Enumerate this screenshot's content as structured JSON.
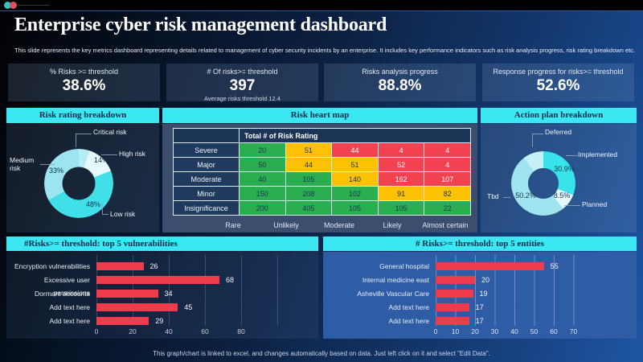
{
  "header": {
    "title": "Enterprise cyber risk management dashboard",
    "subtitle": "This slide represents the key metrics dashboard representing details related to management of cyber security incidents by an enterprise. It includes key performance indicators such as risk analysis progress, risk rating breakdown etc."
  },
  "kpis": [
    {
      "label": "% Risks >= threshold",
      "value": "38.6%",
      "sub": ""
    },
    {
      "label": "# Of risks>= threshold",
      "value": "397",
      "sub": "Average risks threshold 12.4"
    },
    {
      "label": "Risks analysis progress",
      "value": "88.8%",
      "sub": ""
    },
    {
      "label": "Response progress for risks>= threshold",
      "value": "52.6%",
      "sub": ""
    }
  ],
  "sections": {
    "risk_rating_title": "Risk rating breakdown",
    "heat_map_title": "Risk heart map",
    "action_plan_title": "Action plan breakdown",
    "vulnerabilities_title": "#Risks>= threshold: top 5 vulnerabilities",
    "entities_title": "# Risks>= threshold: top 5 entities"
  },
  "footer": {
    "note": "This graph/chart is linked to excel, and changes automatically based on data. Just left click on it and select \"Edit Data\"."
  },
  "colors": {
    "accent_cyan": "#3be7f0",
    "bar_red": "#ee3c4c",
    "heat_green": "#2bae50",
    "heat_yellow": "#fcc103",
    "heat_red": "#f2424f",
    "topbar_dot_teal": "#35c4bd",
    "topbar_dot_red": "#e0505e"
  },
  "chart_data": [
    {
      "type": "pie",
      "subtype": "donut",
      "title": "Risk rating breakdown",
      "slices": [
        {
          "label": "Critical risk",
          "value": 5,
          "pct_label": "",
          "color": "#b5edf5"
        },
        {
          "label": "High risk",
          "value": 14,
          "pct_label": "14%",
          "color": "#e6f9fc"
        },
        {
          "label": "Low risk",
          "value": 48,
          "pct_label": "48%",
          "color": "#41e0e9"
        },
        {
          "label": "Medium risk",
          "value": 33,
          "pct_label": "33%",
          "color": "#9be4f0"
        }
      ]
    },
    {
      "type": "heatmap",
      "title": "Risk heart map",
      "corner_header": "Total # of Risk Rating",
      "rows": [
        "Severe",
        "Major",
        "Moderate",
        "Minor",
        "Insignificance"
      ],
      "columns": [
        "Rare",
        "Unlikely",
        "Moderate",
        "Likely",
        "Almost certain"
      ],
      "values": [
        [
          20,
          51,
          44,
          4,
          4
        ],
        [
          50,
          44,
          51,
          52,
          4
        ],
        [
          40,
          105,
          140,
          162,
          107
        ],
        [
          150,
          208,
          102,
          91,
          82
        ],
        [
          200,
          405,
          105,
          105,
          22
        ]
      ],
      "cell_colors": [
        [
          "green",
          "yellow",
          "red",
          "red",
          "red"
        ],
        [
          "green",
          "yellow",
          "yellow",
          "red",
          "red"
        ],
        [
          "green",
          "green",
          "yellow",
          "red",
          "red"
        ],
        [
          "green",
          "green",
          "green",
          "yellow",
          "yellow"
        ],
        [
          "green",
          "green",
          "green",
          "green",
          "green"
        ]
      ],
      "palette": {
        "green": "#2bae50",
        "yellow": "#fcc103",
        "red": "#f2424f"
      }
    },
    {
      "type": "pie",
      "subtype": "donut",
      "title": "Action plan breakdown",
      "slices": [
        {
          "label": "Implemented",
          "value": 30.9,
          "pct_label": "30.9%",
          "color": "#38e3ea"
        },
        {
          "label": "Planned",
          "value": 8.5,
          "pct_label": "8.5%",
          "color": "#e6f9fc"
        },
        {
          "label": "Tbd",
          "value": 50.2,
          "pct_label": "50.2%",
          "color": "#a0e4f0"
        },
        {
          "label": "Deferred",
          "value": 10.4,
          "pct_label": "",
          "color": "#c6f0f7"
        }
      ]
    },
    {
      "type": "bar",
      "orientation": "horizontal",
      "title": "#Risks>= threshold: top 5 vulnerabilities",
      "categories": [
        "Encryption vulnerabilities",
        "Excessive user permissions",
        "Dormant accounts",
        "Add text here",
        "Add text here"
      ],
      "values": [
        26,
        68,
        34,
        45,
        29
      ],
      "xlim": [
        0,
        80
      ],
      "ticks": [
        0,
        20,
        40,
        60,
        80
      ],
      "bar_color": "#ee3c4c"
    },
    {
      "type": "bar",
      "orientation": "horizontal",
      "title": "# Risks>= threshold: top 5 entities",
      "categories": [
        "General hospital",
        "Internal medicine east",
        "Asheville Vascular Care",
        "Add text here",
        "Add text here"
      ],
      "values": [
        55,
        20,
        19,
        17,
        17
      ],
      "xlim": [
        0,
        70
      ],
      "ticks": [
        0,
        10,
        20,
        30,
        40,
        50,
        60,
        70
      ],
      "bar_color": "#ee3c4c"
    }
  ]
}
